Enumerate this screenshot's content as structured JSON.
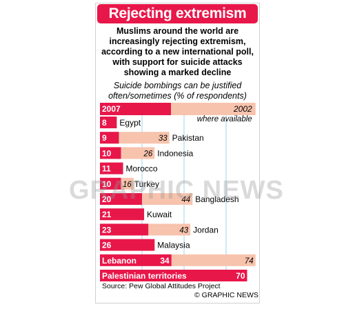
{
  "header": {
    "title": "Rejecting extremism",
    "subtitle": "Muslims around the world are increasingly rejecting extremism, according to a new international poll, with support for suicide attacks showing a marked decline",
    "note": "Suicide bombings can be justified often/sometimes (% of respondents)"
  },
  "footer": {
    "source": "Source: Pew Global Attitudes Project",
    "copyright": "© GRAPHIC NEWS"
  },
  "watermark": {
    "text": "GRAPHIC NEWS"
  },
  "colors": {
    "y2007": "#e8174a",
    "y2002": "#f7c3ad",
    "title_bg": "#e8174a"
  },
  "chart_data": {
    "type": "bar",
    "orientation": "horizontal",
    "xlim": [
      0,
      80
    ],
    "series": [
      {
        "name": "2007",
        "values": [
          8,
          9,
          10,
          11,
          10,
          20,
          21,
          23,
          26,
          34,
          70
        ]
      },
      {
        "name": "2002",
        "values": [
          null,
          33,
          26,
          null,
          16,
          44,
          null,
          43,
          null,
          74,
          null
        ]
      }
    ],
    "legend_note": "where available",
    "categories": [
      "Egypt",
      "Pakistan",
      "Indonesia",
      "Morocco",
      "Turkey",
      "Bangladesh",
      "Kuwait",
      "Jordan",
      "Malaysia",
      "Lebanon",
      "Palestinian territories"
    ]
  }
}
